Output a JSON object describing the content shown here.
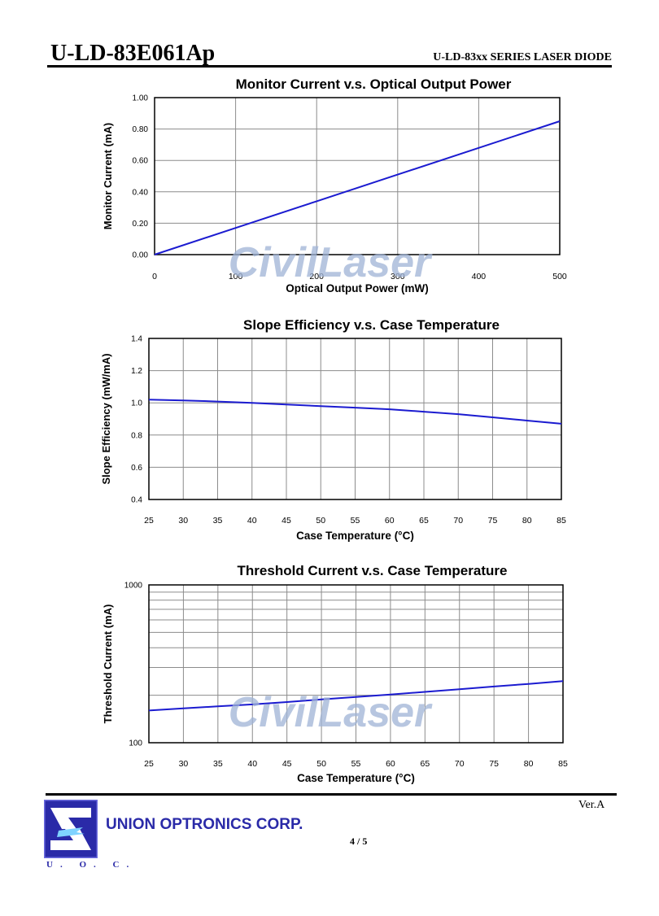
{
  "header": {
    "doc_title": "U-LD-83E061Ap",
    "series_title": "U-LD-83xx SERIES LASER DIODE"
  },
  "watermark": "CivilLaser",
  "footer": {
    "company": "UNION OPTRONICS CORP.",
    "logo_letters": "U. O. C.",
    "page": "4 / 5",
    "version": "Ver.A"
  },
  "colors": {
    "line": "#1b1bd0",
    "grid": "#8c8c8c",
    "logo": "#2a2aa8",
    "watermark": "#9fb3d6"
  },
  "chart_data": [
    {
      "type": "line",
      "title": "Monitor Current v.s. Optical Output Power",
      "xlabel": "Optical Output Power (mW)",
      "ylabel": "Monitor Current (mA)",
      "xlim": [
        0,
        500
      ],
      "ylim": [
        0,
        1.0
      ],
      "x_ticks": [
        0,
        100,
        200,
        300,
        400,
        500
      ],
      "y_ticks": [
        0,
        0.2,
        0.4,
        0.6,
        0.8,
        1.0
      ],
      "x_tick_labels": [
        "0",
        "100",
        "200",
        "300",
        "400",
        "500"
      ],
      "y_tick_labels": [
        "0.00",
        "0.20",
        "0.40",
        "0.60",
        "0.80",
        "1.00"
      ],
      "grid": true,
      "series": [
        {
          "x": [
            0,
            100,
            200,
            300,
            400,
            500
          ],
          "y": [
            0,
            0.17,
            0.34,
            0.51,
            0.68,
            0.85
          ]
        }
      ]
    },
    {
      "type": "line",
      "title": "Slope Efficiency v.s. Case Temperature",
      "xlabel": "Case Temperature (°C)",
      "ylabel": "Slope Efficiency (mW/mA)",
      "xlim": [
        25,
        85
      ],
      "ylim": [
        0.4,
        1.4
      ],
      "x_ticks": [
        25,
        30,
        35,
        40,
        45,
        50,
        55,
        60,
        65,
        70,
        75,
        80,
        85
      ],
      "y_ticks": [
        0.4,
        0.6,
        0.8,
        1.0,
        1.2,
        1.4
      ],
      "x_tick_labels": [
        "25",
        "30",
        "35",
        "40",
        "45",
        "50",
        "55",
        "60",
        "65",
        "70",
        "75",
        "80",
        "85"
      ],
      "y_tick_labels": [
        "0.4",
        "0.6",
        "0.8",
        "1.0",
        "1.2",
        "1.4"
      ],
      "grid": true,
      "series": [
        {
          "x": [
            25,
            30,
            35,
            40,
            45,
            50,
            55,
            60,
            65,
            70,
            75,
            80,
            85
          ],
          "y": [
            1.02,
            1.015,
            1.008,
            1.0,
            0.99,
            0.98,
            0.97,
            0.96,
            0.945,
            0.93,
            0.91,
            0.89,
            0.87
          ]
        }
      ]
    },
    {
      "type": "line",
      "title": "Threshold Current v.s. Case Temperature",
      "xlabel": "Case Temperature (°C)",
      "ylabel": "Threshold Current (mA)",
      "xlim": [
        25,
        85
      ],
      "ylim": [
        100,
        1000
      ],
      "yscale": "log",
      "x_ticks": [
        25,
        30,
        35,
        40,
        45,
        50,
        55,
        60,
        65,
        70,
        75,
        80,
        85
      ],
      "y_ticks": [
        100,
        200,
        300,
        400,
        500,
        600,
        700,
        800,
        900,
        1000
      ],
      "x_tick_labels": [
        "25",
        "30",
        "35",
        "40",
        "45",
        "50",
        "55",
        "60",
        "65",
        "70",
        "75",
        "80",
        "85"
      ],
      "y_tick_labels": [
        "100",
        "",
        "",
        "",
        "",
        "",
        "",
        "",
        "",
        "1000"
      ],
      "grid": true,
      "series": [
        {
          "x": [
            25,
            30,
            35,
            40,
            45,
            50,
            55,
            60,
            65,
            70,
            75,
            80,
            85
          ],
          "y": [
            160,
            165,
            170,
            175,
            181,
            188,
            195,
            202,
            210,
            218,
            227,
            236,
            246
          ]
        }
      ]
    }
  ]
}
